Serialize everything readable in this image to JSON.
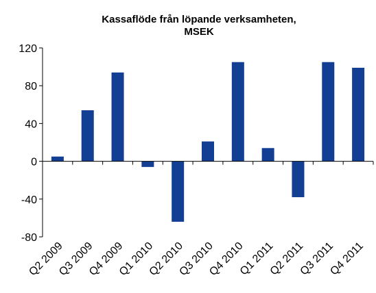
{
  "chart_data": {
    "type": "bar",
    "title": [
      "Kassaflöde från löpande verksamheten,",
      "MSEK"
    ],
    "categories": [
      "Q2 2009",
      "Q3 2009",
      "Q4 2009",
      "Q1 2010",
      "Q2 2010",
      "Q3 2010",
      "Q4 2010",
      "Q1 2011",
      "Q2 2011",
      "Q3 2011",
      "Q4 2011"
    ],
    "values": [
      5,
      54,
      94,
      -6,
      -64,
      21,
      105,
      14,
      -38,
      105,
      99
    ],
    "color": "#123f94",
    "ylim": [
      -80,
      120
    ],
    "yticks": [
      -80,
      -40,
      0,
      40,
      80,
      120
    ],
    "grid": false
  }
}
